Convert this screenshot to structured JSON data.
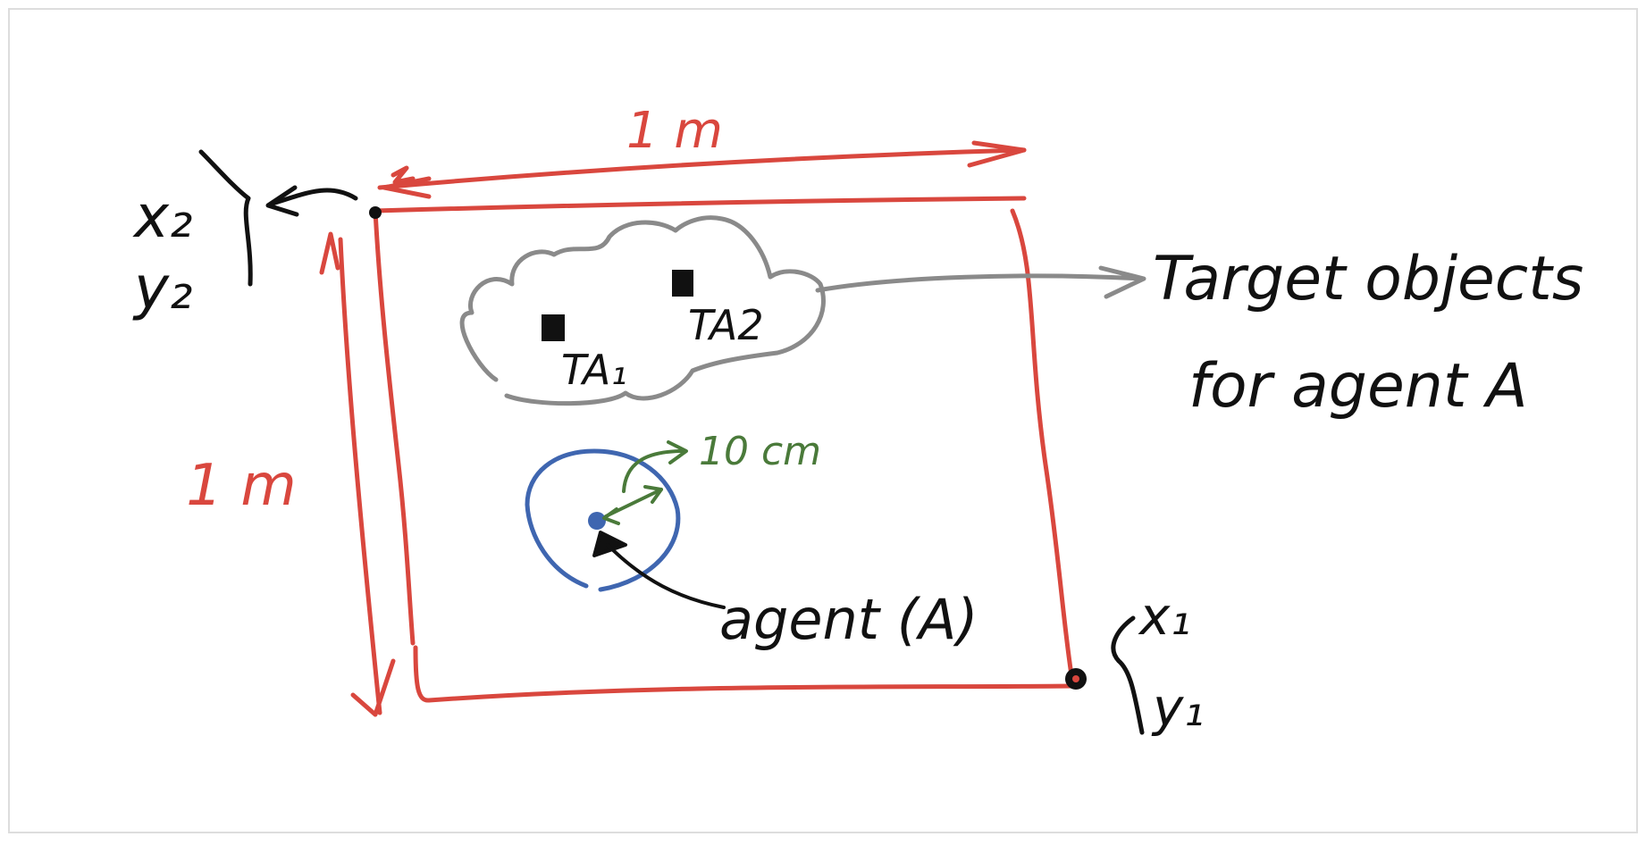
{
  "labels": {
    "top_width": "1 m",
    "left_height": "1 m",
    "corner_top_left_x": "x₂",
    "corner_top_left_y": "y₂",
    "corner_bottom_right_x": "x₁",
    "corner_bottom_right_y": "y₁",
    "target_1": "TA₁",
    "target_2": "TA2",
    "targets_line1": "Target objects",
    "targets_line2": "for agent A",
    "sensing_radius": "10 cm",
    "agent": "agent (A)"
  },
  "colors": {
    "boundary": "#d9473e",
    "cloud": "#8a8a8a",
    "agent_circle": "#3f66b0",
    "radius": "#4a7a3a",
    "ink": "#111111"
  }
}
